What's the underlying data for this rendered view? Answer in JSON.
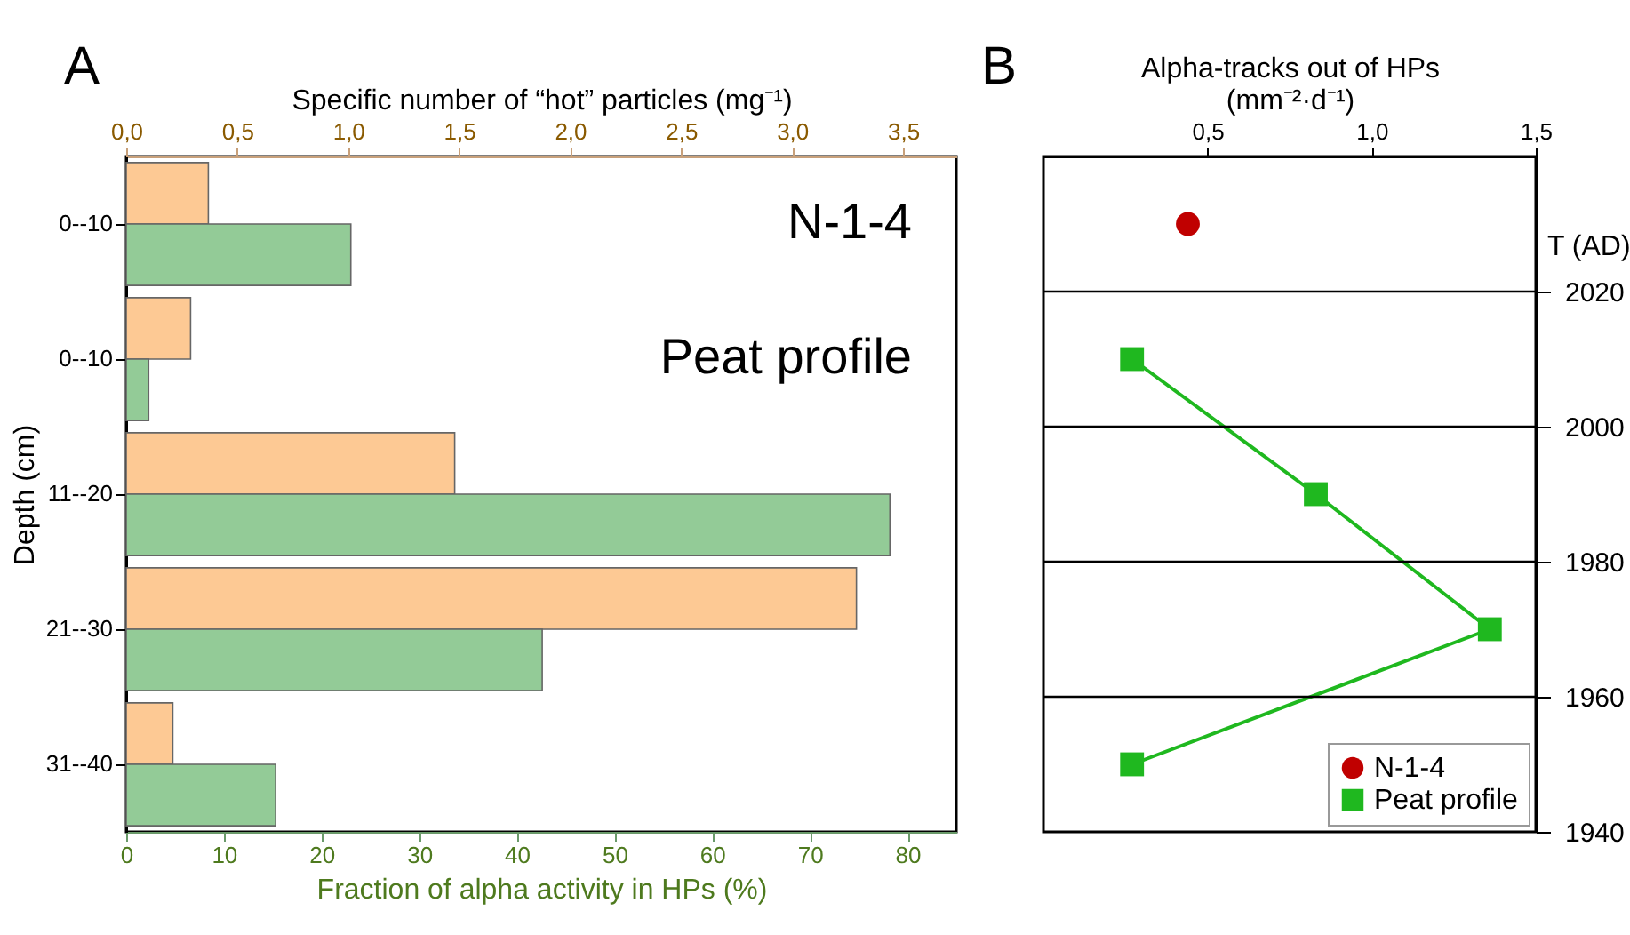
{
  "chart_data": [
    {
      "type": "bar",
      "orientation": "horizontal",
      "annotations": [
        "A",
        "N-1-4",
        "Peat profile"
      ],
      "categories": [
        "0--10",
        "0--10",
        "11--20",
        "21--30",
        "31--40"
      ],
      "ylabel": "Depth (cm)",
      "xlabel": "Fraction of alpha activity in HPs (%)",
      "x2label": "Specific number of “hot” particles (mg⁻¹)",
      "xlim": [
        0,
        85
      ],
      "xticks": [
        0,
        10,
        20,
        30,
        40,
        50,
        60,
        70,
        80
      ],
      "x2lim": [
        0,
        3.74
      ],
      "x2ticks": [
        {
          "value": 0,
          "label": "0,0"
        },
        {
          "value": 0.5,
          "label": "0,5"
        },
        {
          "value": 1,
          "label": "1,0"
        },
        {
          "value": 1.5,
          "label": "1,5"
        },
        {
          "value": 2,
          "label": "2,0"
        },
        {
          "value": 2.5,
          "label": "2,5"
        },
        {
          "value": 3,
          "label": "3,0"
        },
        {
          "value": 3.5,
          "label": "3,5"
        }
      ],
      "series": [
        {
          "color": "#fdc994",
          "axis": "x2",
          "values": [
            0.37,
            0.29,
            1.48,
            3.29,
            0.21
          ]
        },
        {
          "color": "#93cb97",
          "values": [
            23.0,
            2.3,
            78.2,
            42.6,
            15.3
          ]
        }
      ]
    },
    {
      "type": "line",
      "annotations": [
        "B"
      ],
      "xlabel": "Alpha-tracks out of HPs\n(mm⁻²·d⁻¹)",
      "xlim": [
        0,
        1.5
      ],
      "xticks": [
        {
          "value": 0.5,
          "label": "0,5"
        },
        {
          "value": 1,
          "label": "1,0"
        },
        {
          "value": 1.5,
          "label": "1,5"
        }
      ],
      "ylabel": "T (AD)",
      "ylim": [
        1940,
        2040
      ],
      "yticks": [
        2020,
        2000,
        1980,
        1960,
        1940
      ],
      "ref_lines": [
        {
          "axis": "y",
          "value": 2020
        },
        {
          "axis": "y",
          "value": 2000
        },
        {
          "axis": "y",
          "value": 1980
        },
        {
          "axis": "y",
          "value": 1960
        }
      ],
      "legend": "bottom right",
      "series": [
        {
          "name": "N-1-4",
          "type": "scatter",
          "marker": "circle",
          "color": "#c00000",
          "x": [
            0.44
          ],
          "values": [
            2030
          ]
        },
        {
          "name": "Peat profile",
          "marker": "square",
          "color": "#1fb81f",
          "x": [
            0.27,
            0.83,
            1.36,
            0.27
          ],
          "values": [
            2010,
            1990,
            1970,
            1950
          ]
        }
      ]
    }
  ]
}
